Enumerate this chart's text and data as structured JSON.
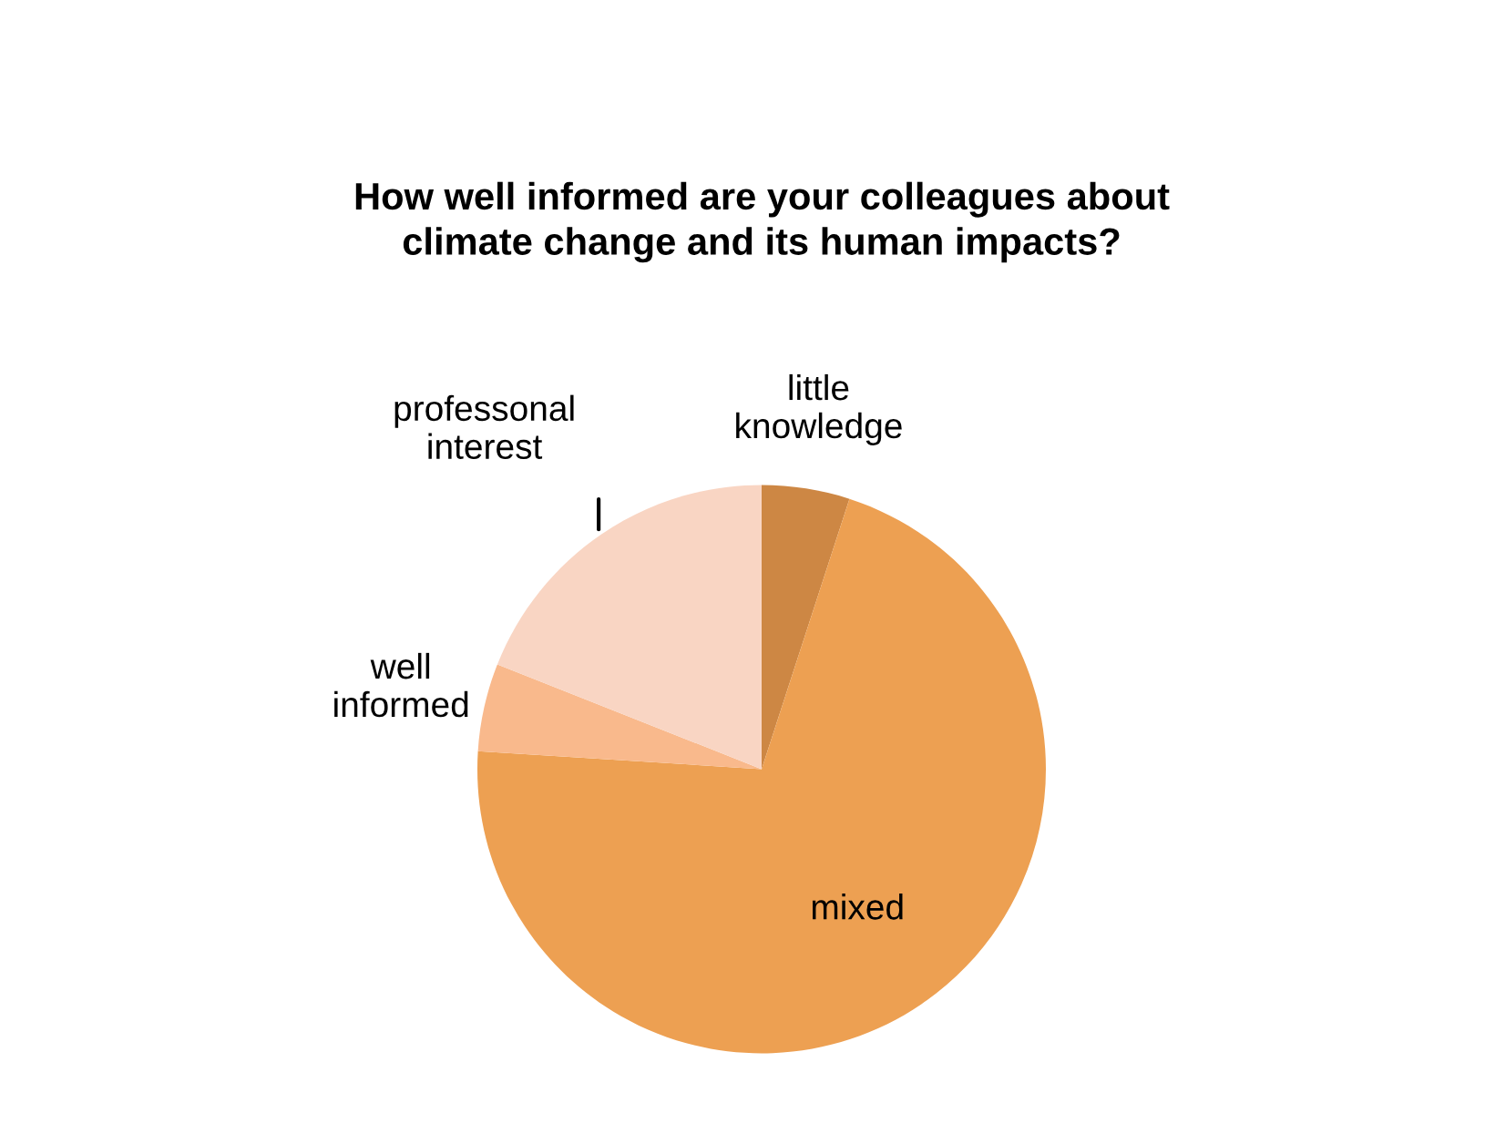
{
  "chart_data": {
    "type": "pie",
    "title": "How well informed are your colleagues about\nclimate change and its human impacts?",
    "categories": [
      "little\nknowledge",
      "mixed",
      "well\ninformed",
      "professonal\ninterest"
    ],
    "values": [
      5,
      71,
      5,
      19
    ],
    "colors": [
      "#cd8744",
      "#eda052",
      "#f9b98c",
      "#f9d5c3"
    ],
    "legend": false
  }
}
